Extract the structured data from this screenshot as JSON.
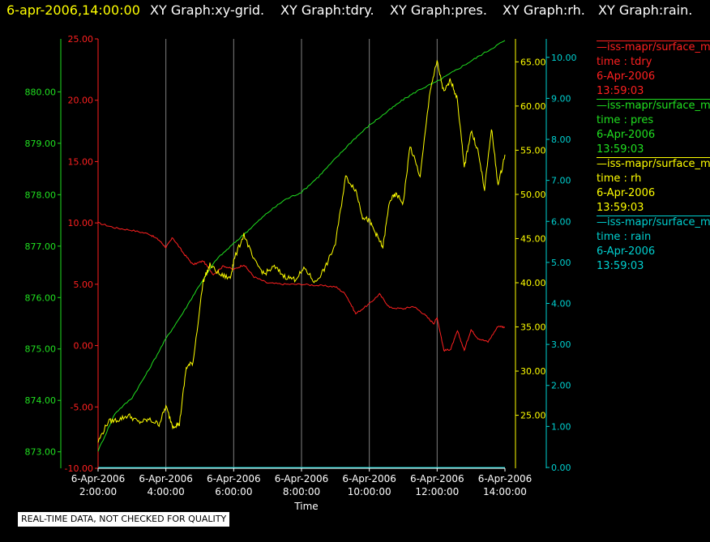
{
  "header": {
    "timestamp": "6-apr-2006,14:00:00",
    "graph_titles": [
      "XY Graph:xy-grid.",
      "XY Graph:tdry.",
      "XY Graph:pres.",
      "XY Graph:rh.",
      "XY Graph:rain."
    ]
  },
  "colors": {
    "tdry": "#ff2020",
    "pres": "#20e020",
    "rh": "#ffff00",
    "rain": "#00d0d0",
    "grid": "#808080",
    "axis": "#ffffff"
  },
  "legend": [
    {
      "source": "—iss-mapr/surface_m",
      "field": "time : tdry",
      "date": "6-Apr-2006",
      "time": "13:59:03",
      "color": "#ff2020"
    },
    {
      "source": "—iss-mapr/surface_m",
      "field": "time : pres",
      "date": "6-Apr-2006",
      "time": "13:59:03",
      "color": "#20e020"
    },
    {
      "source": "—iss-mapr/surface_m",
      "field": "time : rh",
      "date": "6-Apr-2006",
      "time": "13:59:03",
      "color": "#ffff00"
    },
    {
      "source": "—iss-mapr/surface_m",
      "field": "time : rain",
      "date": "6-Apr-2006",
      "time": "13:59:03",
      "color": "#00d0d0"
    }
  ],
  "quality_note": "REAL-TIME DATA, NOT CHECKED FOR QUALITY",
  "chart_data": {
    "type": "line",
    "xlabel": "Time",
    "x_ticks": [
      {
        "date": "6-Apr-2006",
        "time": "2:00:00",
        "hours": 2
      },
      {
        "date": "6-Apr-2006",
        "time": "4:00:00",
        "hours": 4
      },
      {
        "date": "6-Apr-2006",
        "time": "6:00:00",
        "hours": 6
      },
      {
        "date": "6-Apr-2006",
        "time": "8:00:00",
        "hours": 8
      },
      {
        "date": "6-Apr-2006",
        "time": "10:00:00",
        "hours": 10
      },
      {
        "date": "6-Apr-2006",
        "time": "12:00:00",
        "hours": 12
      },
      {
        "date": "6-Apr-2006",
        "time": "14:00:00",
        "hours": 14
      }
    ],
    "xlim": [
      2,
      14
    ],
    "grid": true,
    "axes": {
      "pres": {
        "ylim": [
          872.68,
          881.03
        ],
        "ticks": [
          "873.00",
          "874.00",
          "875.00",
          "876.00",
          "877.00",
          "878.00",
          "879.00",
          "880.00"
        ]
      },
      "tdry": {
        "ylim": [
          -10,
          25
        ],
        "ticks": [
          "-10.00",
          "-5.00",
          "0.00",
          "5.00",
          "10.00",
          "15.00",
          "20.00",
          "25.00"
        ]
      },
      "rh": {
        "ylim": [
          19.0,
          67.6
        ],
        "ticks": [
          "25.00",
          "30.00",
          "35.00",
          "40.00",
          "45.00",
          "50.00",
          "55.00",
          "60.00",
          "65.00"
        ]
      },
      "rain": {
        "ylim": [
          -0.02,
          10.45
        ],
        "ticks": [
          "0.00",
          "1.00",
          "2.00",
          "3.00",
          "4.00",
          "5.00",
          "6.00",
          "7.00",
          "8.00",
          "9.00",
          "10.00"
        ]
      }
    },
    "series": [
      {
        "name": "time : tdry",
        "axis": "tdry",
        "x": [
          2,
          2.5,
          3,
          3.5,
          3.8,
          4.0,
          4.2,
          4.5,
          4.8,
          5.1,
          5.4,
          5.7,
          6.0,
          6.3,
          6.6,
          7.0,
          7.5,
          8.0,
          8.5,
          9.0,
          9.3,
          9.6,
          10.0,
          10.3,
          10.6,
          11.0,
          11.3,
          11.6,
          11.9,
          12.0,
          12.2,
          12.4,
          12.6,
          12.8,
          13.0,
          13.2,
          13.5,
          13.8,
          14.0
        ],
        "values": [
          10.0,
          9.6,
          9.4,
          9.1,
          8.6,
          8.0,
          8.8,
          7.6,
          6.6,
          6.9,
          5.8,
          6.5,
          6.2,
          6.6,
          5.6,
          5.1,
          5.0,
          5.0,
          4.9,
          4.8,
          4.2,
          2.6,
          3.4,
          4.2,
          3.1,
          3.0,
          3.2,
          2.6,
          1.8,
          2.3,
          -0.4,
          -0.3,
          1.2,
          -0.4,
          1.3,
          0.6,
          0.3,
          1.6,
          1.5
        ]
      },
      {
        "name": "time : pres",
        "axis": "pres",
        "x": [
          2,
          2.5,
          3,
          3.5,
          4,
          4.5,
          5,
          5.5,
          6,
          6.5,
          7,
          7.5,
          8,
          8.5,
          9,
          9.5,
          10,
          10.5,
          11,
          11.5,
          12,
          12.5,
          13,
          13.5,
          14
        ],
        "values": [
          873.02,
          873.75,
          874.05,
          874.6,
          875.2,
          875.7,
          876.25,
          876.75,
          877.05,
          877.35,
          877.65,
          877.9,
          878.05,
          878.35,
          878.7,
          879.05,
          879.35,
          879.6,
          879.85,
          880.05,
          880.2,
          880.4,
          880.6,
          880.8,
          881.0
        ]
      },
      {
        "name": "time : rh",
        "axis": "rh",
        "x": [
          2,
          2.3,
          2.6,
          2.9,
          3.2,
          3.5,
          3.8,
          4.0,
          4.2,
          4.4,
          4.6,
          4.8,
          5.1,
          5.3,
          5.6,
          5.9,
          6.0,
          6.3,
          6.6,
          6.9,
          7.2,
          7.5,
          7.8,
          8.1,
          8.4,
          8.7,
          9.0,
          9.3,
          9.6,
          9.8,
          10.0,
          10.2,
          10.4,
          10.6,
          10.8,
          11.0,
          11.2,
          11.5,
          11.8,
          12.0,
          12.2,
          12.4,
          12.6,
          12.8,
          13.0,
          13.2,
          13.4,
          13.6,
          13.8,
          14.0
        ],
        "values": [
          22.0,
          24.3,
          24.5,
          25.0,
          24.2,
          24.5,
          24.0,
          26.0,
          23.8,
          24.0,
          30.4,
          31.0,
          40.2,
          42.0,
          40.9,
          40.5,
          42.5,
          45.5,
          42.5,
          41.0,
          41.8,
          40.7,
          40.4,
          41.6,
          40.0,
          41.7,
          44.4,
          52.0,
          50.5,
          47.5,
          47.0,
          45.5,
          44.0,
          49.3,
          50.0,
          49.0,
          55.5,
          52.0,
          62.0,
          65.0,
          61.5,
          63.0,
          60.7,
          53.0,
          57.2,
          55.0,
          50.5,
          57.5,
          51.0,
          54.5
        ]
      },
      {
        "name": "time : rain",
        "axis": "rain",
        "x": [
          2,
          14
        ],
        "values": [
          0.0,
          0.0
        ]
      }
    ]
  }
}
